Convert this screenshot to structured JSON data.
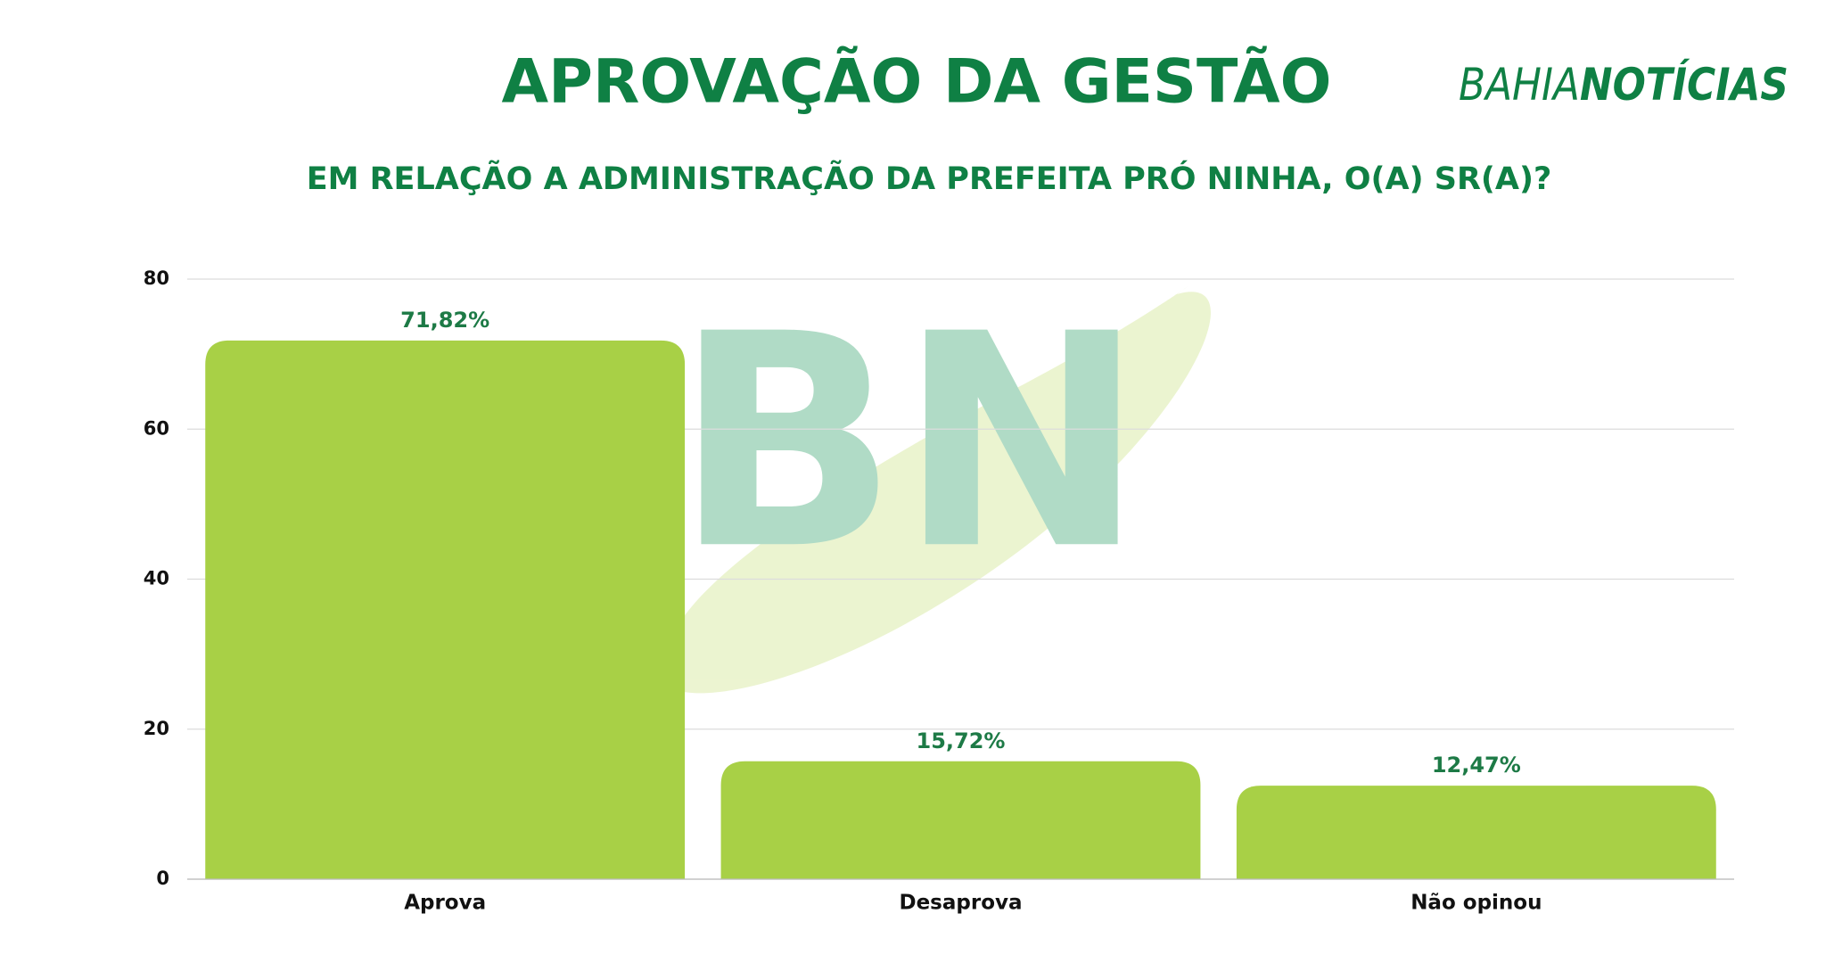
{
  "chart_data": {
    "type": "bar",
    "title": "APROVAÇÃO DA GESTÃO",
    "subtitle": "EM RELAÇÃO A ADMINISTRAÇÃO DA PREFEITA PRÓ NINHA, O(A) SR(A)?",
    "logo": {
      "light": "BAHIA",
      "bold": "NOTÍCIAS"
    },
    "watermark": "BN",
    "categories": [
      "Aprova",
      "Desaprova",
      "Não opinou"
    ],
    "values": [
      71.82,
      15.72,
      12.47
    ],
    "value_labels": [
      "71,82%",
      "15,72%",
      "12,47%"
    ],
    "color": "#a8d046",
    "ylim": [
      0,
      80
    ],
    "yticks": [
      0,
      20,
      40,
      60,
      80
    ],
    "grid": true
  }
}
